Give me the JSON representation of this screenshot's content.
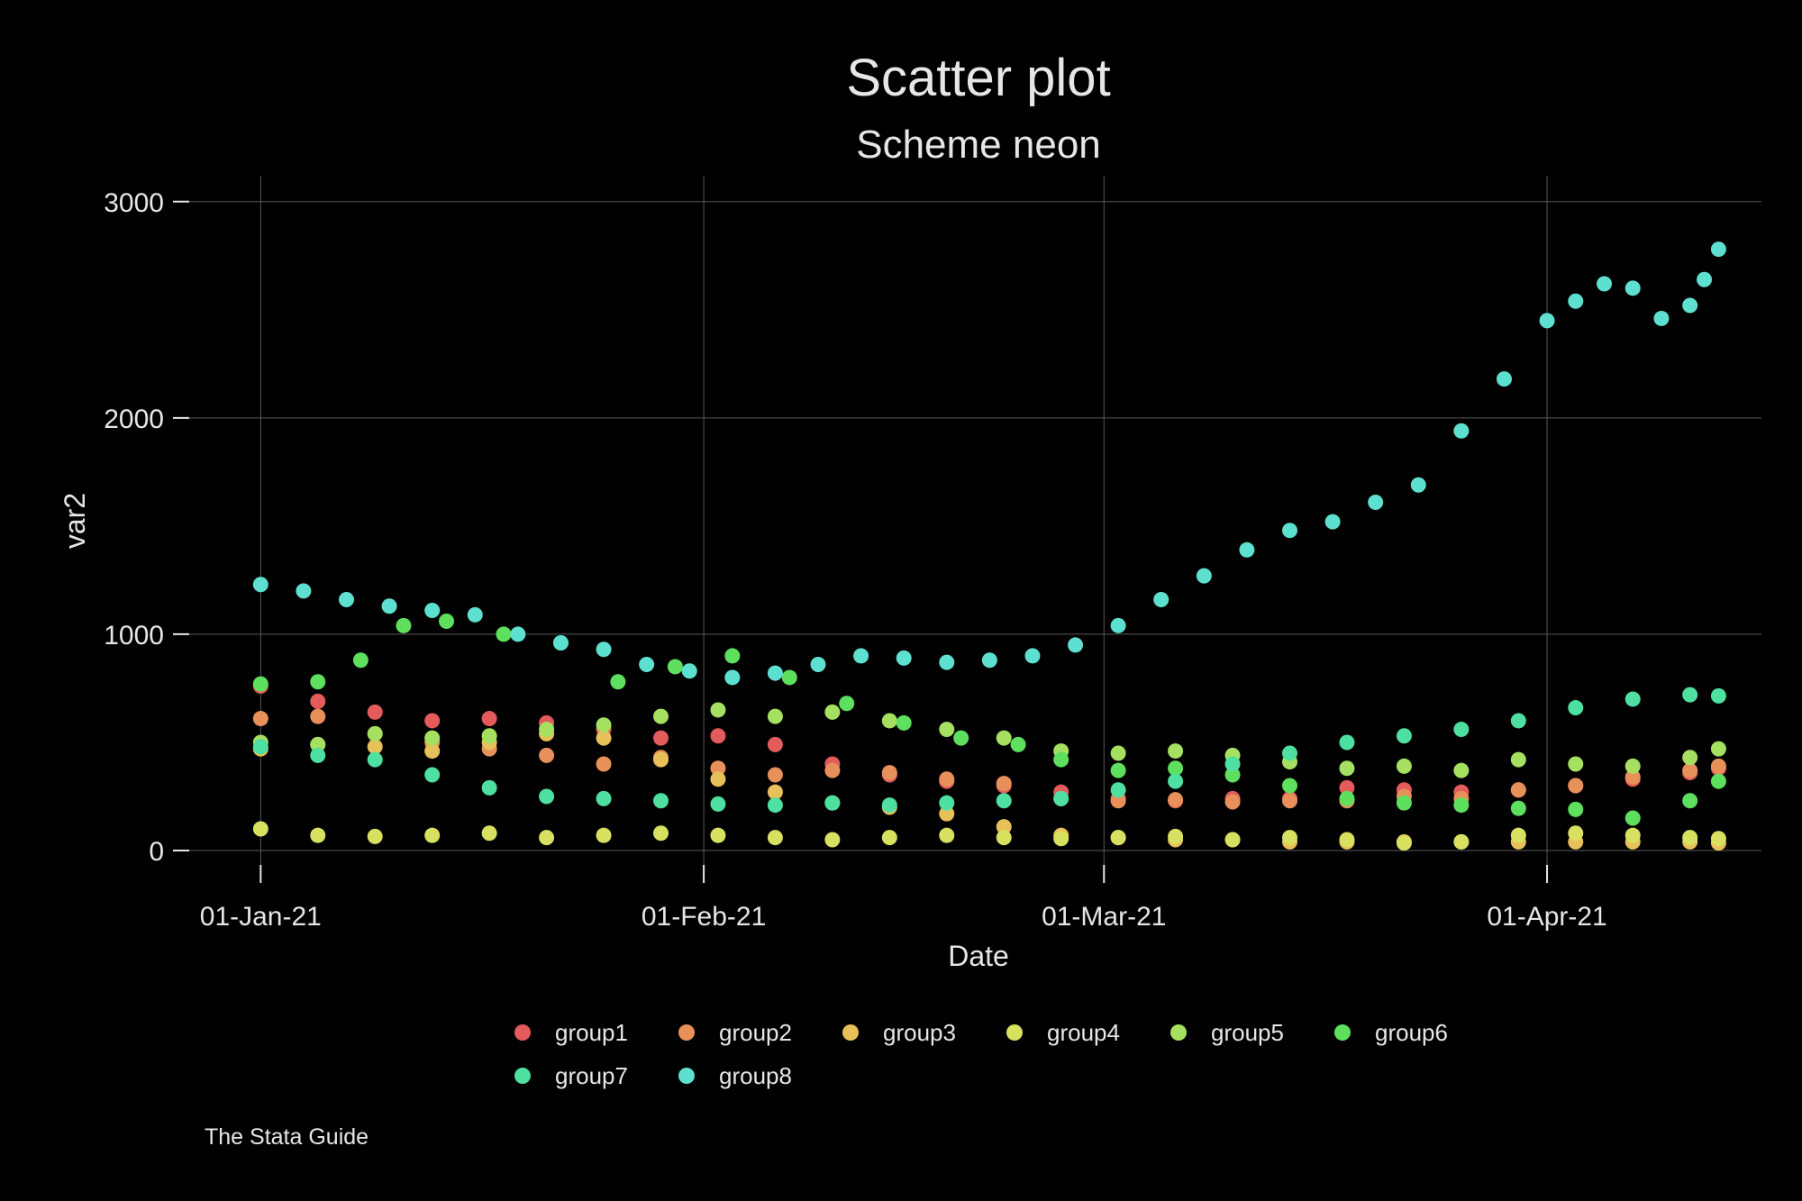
{
  "chart_data": {
    "type": "scatter",
    "title": "Scatter plot",
    "subtitle": "Scheme neon",
    "xlabel": "Date",
    "ylabel": "var2",
    "note": "The Stata Guide",
    "x_ticks": [
      {
        "date": "2021-01-01",
        "label": "01-Jan-21"
      },
      {
        "date": "2021-02-01",
        "label": "01-Feb-21"
      },
      {
        "date": "2021-03-01",
        "label": "01-Mar-21"
      },
      {
        "date": "2021-04-01",
        "label": "01-Apr-21"
      }
    ],
    "y_ticks": [
      0,
      1000,
      2000,
      3000
    ],
    "xlim": [
      "2020-12-27",
      "2021-04-16"
    ],
    "ylim": [
      -150,
      3120
    ],
    "grid": true,
    "legend_position": "bottom",
    "series": [
      {
        "name": "group1",
        "color": "#e45b5b",
        "points": [
          [
            "2021-01-01",
            760
          ],
          [
            "2021-01-05",
            690
          ],
          [
            "2021-01-09",
            640
          ],
          [
            "2021-01-13",
            600
          ],
          [
            "2021-01-17",
            610
          ],
          [
            "2021-01-21",
            590
          ],
          [
            "2021-01-25",
            560
          ],
          [
            "2021-01-29",
            520
          ],
          [
            "2021-02-02",
            530
          ],
          [
            "2021-02-06",
            490
          ],
          [
            "2021-02-10",
            400
          ],
          [
            "2021-02-14",
            350
          ],
          [
            "2021-02-18",
            320
          ],
          [
            "2021-02-22",
            300
          ],
          [
            "2021-02-26",
            270
          ],
          [
            "2021-03-02",
            240
          ],
          [
            "2021-03-06",
            230
          ],
          [
            "2021-03-10",
            240
          ],
          [
            "2021-03-14",
            240
          ],
          [
            "2021-03-18",
            290
          ],
          [
            "2021-03-22",
            280
          ],
          [
            "2021-03-26",
            270
          ],
          [
            "2021-03-30",
            280
          ],
          [
            "2021-04-03",
            300
          ],
          [
            "2021-04-07",
            330
          ],
          [
            "2021-04-11",
            360
          ],
          [
            "2021-04-13",
            380
          ]
        ]
      },
      {
        "name": "group2",
        "color": "#e8905a",
        "points": [
          [
            "2021-01-01",
            610
          ],
          [
            "2021-01-05",
            620
          ],
          [
            "2021-01-09",
            540
          ],
          [
            "2021-01-13",
            500
          ],
          [
            "2021-01-17",
            470
          ],
          [
            "2021-01-21",
            440
          ],
          [
            "2021-01-25",
            400
          ],
          [
            "2021-01-29",
            430
          ],
          [
            "2021-02-02",
            380
          ],
          [
            "2021-02-06",
            350
          ],
          [
            "2021-02-10",
            370
          ],
          [
            "2021-02-14",
            360
          ],
          [
            "2021-02-18",
            330
          ],
          [
            "2021-02-22",
            310
          ],
          [
            "2021-02-26",
            240
          ],
          [
            "2021-03-02",
            230
          ],
          [
            "2021-03-06",
            235
          ],
          [
            "2021-03-10",
            225
          ],
          [
            "2021-03-14",
            230
          ],
          [
            "2021-03-18",
            230
          ],
          [
            "2021-03-22",
            250
          ],
          [
            "2021-03-26",
            240
          ],
          [
            "2021-03-30",
            280
          ],
          [
            "2021-04-03",
            300
          ],
          [
            "2021-04-07",
            340
          ],
          [
            "2021-04-11",
            370
          ],
          [
            "2021-04-13",
            390
          ]
        ]
      },
      {
        "name": "group3",
        "color": "#e8c05a",
        "points": [
          [
            "2021-01-01",
            470
          ],
          [
            "2021-01-05",
            490
          ],
          [
            "2021-01-09",
            480
          ],
          [
            "2021-01-13",
            460
          ],
          [
            "2021-01-17",
            500
          ],
          [
            "2021-01-21",
            540
          ],
          [
            "2021-01-25",
            520
          ],
          [
            "2021-01-29",
            420
          ],
          [
            "2021-02-02",
            330
          ],
          [
            "2021-02-06",
            270
          ],
          [
            "2021-02-10",
            220
          ],
          [
            "2021-02-14",
            200
          ],
          [
            "2021-02-18",
            170
          ],
          [
            "2021-02-22",
            110
          ],
          [
            "2021-02-26",
            70
          ],
          [
            "2021-03-02",
            60
          ],
          [
            "2021-03-06",
            50
          ],
          [
            "2021-03-10",
            50
          ],
          [
            "2021-03-14",
            40
          ],
          [
            "2021-03-18",
            40
          ],
          [
            "2021-03-22",
            40
          ],
          [
            "2021-03-26",
            40
          ],
          [
            "2021-03-30",
            40
          ],
          [
            "2021-04-03",
            40
          ],
          [
            "2021-04-07",
            40
          ],
          [
            "2021-04-11",
            40
          ],
          [
            "2021-04-13",
            35
          ]
        ]
      },
      {
        "name": "group4",
        "color": "#d8e060",
        "points": [
          [
            "2021-01-01",
            100
          ],
          [
            "2021-01-05",
            70
          ],
          [
            "2021-01-09",
            65
          ],
          [
            "2021-01-13",
            70
          ],
          [
            "2021-01-17",
            80
          ],
          [
            "2021-01-21",
            60
          ],
          [
            "2021-01-25",
            70
          ],
          [
            "2021-01-29",
            80
          ],
          [
            "2021-02-02",
            70
          ],
          [
            "2021-02-06",
            60
          ],
          [
            "2021-02-10",
            50
          ],
          [
            "2021-02-14",
            60
          ],
          [
            "2021-02-18",
            70
          ],
          [
            "2021-02-22",
            60
          ],
          [
            "2021-02-26",
            55
          ],
          [
            "2021-03-02",
            60
          ],
          [
            "2021-03-06",
            65
          ],
          [
            "2021-03-10",
            50
          ],
          [
            "2021-03-14",
            60
          ],
          [
            "2021-03-18",
            50
          ],
          [
            "2021-03-22",
            35
          ],
          [
            "2021-03-26",
            40
          ],
          [
            "2021-03-30",
            70
          ],
          [
            "2021-04-03",
            80
          ],
          [
            "2021-04-07",
            70
          ],
          [
            "2021-04-11",
            60
          ],
          [
            "2021-04-13",
            55
          ]
        ]
      },
      {
        "name": "group5",
        "color": "#a6e060",
        "points": [
          [
            "2021-01-01",
            500
          ],
          [
            "2021-01-05",
            490
          ],
          [
            "2021-01-09",
            540
          ],
          [
            "2021-01-13",
            520
          ],
          [
            "2021-01-17",
            530
          ],
          [
            "2021-01-21",
            560
          ],
          [
            "2021-01-25",
            580
          ],
          [
            "2021-01-29",
            620
          ],
          [
            "2021-02-02",
            650
          ],
          [
            "2021-02-06",
            620
          ],
          [
            "2021-02-10",
            640
          ],
          [
            "2021-02-14",
            600
          ],
          [
            "2021-02-18",
            560
          ],
          [
            "2021-02-22",
            520
          ],
          [
            "2021-02-26",
            460
          ],
          [
            "2021-03-02",
            450
          ],
          [
            "2021-03-06",
            460
          ],
          [
            "2021-03-10",
            440
          ],
          [
            "2021-03-14",
            410
          ],
          [
            "2021-03-18",
            380
          ],
          [
            "2021-03-22",
            390
          ],
          [
            "2021-03-26",
            370
          ],
          [
            "2021-03-30",
            420
          ],
          [
            "2021-04-03",
            400
          ],
          [
            "2021-04-07",
            390
          ],
          [
            "2021-04-11",
            430
          ],
          [
            "2021-04-13",
            470
          ]
        ]
      },
      {
        "name": "group6",
        "color": "#5ee05e",
        "points": [
          [
            "2021-01-01",
            770
          ],
          [
            "2021-01-05",
            780
          ],
          [
            "2021-01-08",
            880
          ],
          [
            "2021-01-11",
            1040
          ],
          [
            "2021-01-14",
            1060
          ],
          [
            "2021-01-18",
            1000
          ],
          [
            "2021-01-22",
            960
          ],
          [
            "2021-01-26",
            780
          ],
          [
            "2021-01-30",
            850
          ],
          [
            "2021-02-03",
            900
          ],
          [
            "2021-02-07",
            800
          ],
          [
            "2021-02-11",
            680
          ],
          [
            "2021-02-15",
            590
          ],
          [
            "2021-02-19",
            520
          ],
          [
            "2021-02-23",
            490
          ],
          [
            "2021-02-26",
            420
          ],
          [
            "2021-03-02",
            370
          ],
          [
            "2021-03-06",
            380
          ],
          [
            "2021-03-10",
            350
          ],
          [
            "2021-03-14",
            300
          ],
          [
            "2021-03-18",
            240
          ],
          [
            "2021-03-22",
            220
          ],
          [
            "2021-03-26",
            210
          ],
          [
            "2021-03-30",
            195
          ],
          [
            "2021-04-03",
            190
          ],
          [
            "2021-04-07",
            150
          ],
          [
            "2021-04-11",
            230
          ],
          [
            "2021-04-13",
            320
          ]
        ]
      },
      {
        "name": "group7",
        "color": "#4ee0a0",
        "points": [
          [
            "2021-01-01",
            480
          ],
          [
            "2021-01-05",
            440
          ],
          [
            "2021-01-09",
            420
          ],
          [
            "2021-01-13",
            350
          ],
          [
            "2021-01-17",
            290
          ],
          [
            "2021-01-21",
            250
          ],
          [
            "2021-01-25",
            240
          ],
          [
            "2021-01-29",
            230
          ],
          [
            "2021-02-02",
            215
          ],
          [
            "2021-02-06",
            210
          ],
          [
            "2021-02-10",
            220
          ],
          [
            "2021-02-14",
            210
          ],
          [
            "2021-02-18",
            220
          ],
          [
            "2021-02-22",
            230
          ],
          [
            "2021-02-26",
            240
          ],
          [
            "2021-03-02",
            280
          ],
          [
            "2021-03-06",
            320
          ],
          [
            "2021-03-10",
            400
          ],
          [
            "2021-03-14",
            450
          ],
          [
            "2021-03-18",
            500
          ],
          [
            "2021-03-22",
            530
          ],
          [
            "2021-03-26",
            560
          ],
          [
            "2021-03-30",
            600
          ],
          [
            "2021-04-03",
            660
          ],
          [
            "2021-04-07",
            700
          ],
          [
            "2021-04-11",
            720
          ],
          [
            "2021-04-13",
            715
          ]
        ]
      },
      {
        "name": "group8",
        "color": "#5ee0d0",
        "points": [
          [
            "2021-01-01",
            1230
          ],
          [
            "2021-01-04",
            1200
          ],
          [
            "2021-01-07",
            1160
          ],
          [
            "2021-01-10",
            1130
          ],
          [
            "2021-01-13",
            1110
          ],
          [
            "2021-01-16",
            1090
          ],
          [
            "2021-01-19",
            1000
          ],
          [
            "2021-01-22",
            960
          ],
          [
            "2021-01-25",
            930
          ],
          [
            "2021-01-28",
            860
          ],
          [
            "2021-01-31",
            830
          ],
          [
            "2021-02-03",
            800
          ],
          [
            "2021-02-06",
            820
          ],
          [
            "2021-02-09",
            860
          ],
          [
            "2021-02-12",
            900
          ],
          [
            "2021-02-15",
            890
          ],
          [
            "2021-02-18",
            870
          ],
          [
            "2021-02-21",
            880
          ],
          [
            "2021-02-24",
            900
          ],
          [
            "2021-02-27",
            950
          ],
          [
            "2021-03-02",
            1040
          ],
          [
            "2021-03-05",
            1160
          ],
          [
            "2021-03-08",
            1270
          ],
          [
            "2021-03-11",
            1390
          ],
          [
            "2021-03-14",
            1480
          ],
          [
            "2021-03-17",
            1520
          ],
          [
            "2021-03-20",
            1610
          ],
          [
            "2021-03-23",
            1690
          ],
          [
            "2021-03-26",
            1940
          ],
          [
            "2021-03-29",
            2180
          ],
          [
            "2021-04-01",
            2450
          ],
          [
            "2021-04-03",
            2540
          ],
          [
            "2021-04-05",
            2620
          ],
          [
            "2021-04-07",
            2600
          ],
          [
            "2021-04-09",
            2460
          ],
          [
            "2021-04-11",
            2520
          ],
          [
            "2021-04-12",
            2640
          ],
          [
            "2021-04-13",
            2780
          ]
        ]
      }
    ]
  }
}
